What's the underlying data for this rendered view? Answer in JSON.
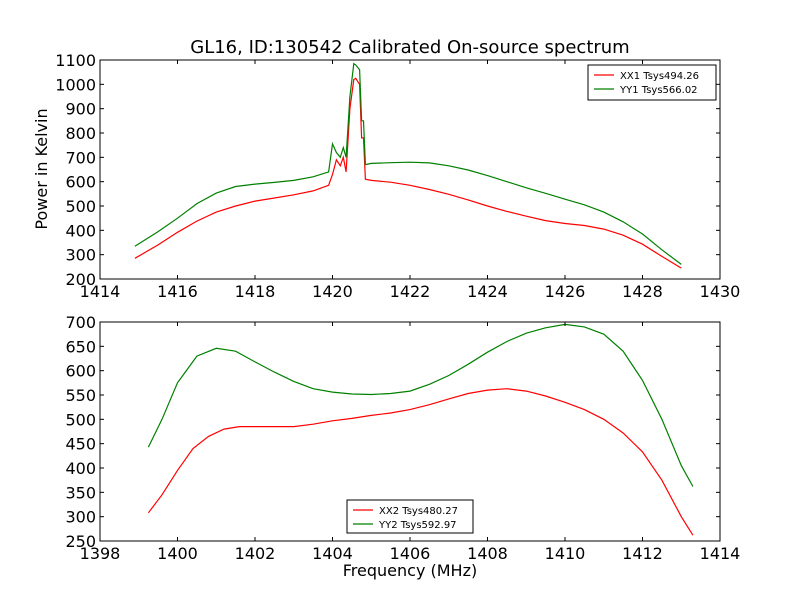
{
  "chart_data": [
    {
      "type": "line",
      "title": "GL16, ID:130542 Calibrated On-source spectrum",
      "xlabel": "",
      "ylabel": "Power in Kelvin",
      "xlim": [
        1414,
        1430
      ],
      "ylim": [
        200,
        1100
      ],
      "xticks": [
        1414,
        1416,
        1418,
        1420,
        1422,
        1424,
        1426,
        1428,
        1430
      ],
      "yticks": [
        200,
        300,
        400,
        500,
        600,
        700,
        800,
        900,
        1000,
        1100
      ],
      "legend_position": "top-right",
      "grid": false,
      "series": [
        {
          "name": "XX1 Tsys494.26",
          "color": "#ff0000",
          "points": [
            [
              1414.9,
              285
            ],
            [
              1415.5,
              340
            ],
            [
              1416.0,
              392
            ],
            [
              1416.5,
              438
            ],
            [
              1417.0,
              475
            ],
            [
              1417.5,
              500
            ],
            [
              1418.0,
              520
            ],
            [
              1418.5,
              533
            ],
            [
              1419.0,
              546
            ],
            [
              1419.5,
              562
            ],
            [
              1419.9,
              585
            ],
            [
              1420.0,
              630
            ],
            [
              1420.1,
              690
            ],
            [
              1420.2,
              665
            ],
            [
              1420.28,
              700
            ],
            [
              1420.35,
              640
            ],
            [
              1420.45,
              900
            ],
            [
              1420.55,
              1020
            ],
            [
              1420.6,
              1025
            ],
            [
              1420.7,
              1000
            ],
            [
              1420.75,
              780
            ],
            [
              1420.8,
              780
            ],
            [
              1420.85,
              610
            ],
            [
              1421.0,
              605
            ],
            [
              1421.5,
              598
            ],
            [
              1422.0,
              585
            ],
            [
              1422.5,
              568
            ],
            [
              1423.0,
              548
            ],
            [
              1423.5,
              525
            ],
            [
              1424.0,
              500
            ],
            [
              1424.5,
              478
            ],
            [
              1425.0,
              458
            ],
            [
              1425.5,
              440
            ],
            [
              1426.0,
              428
            ],
            [
              1426.5,
              420
            ],
            [
              1427.0,
              405
            ],
            [
              1427.5,
              380
            ],
            [
              1428.0,
              343
            ],
            [
              1428.5,
              293
            ],
            [
              1429.0,
              245
            ]
          ]
        },
        {
          "name": "YY1 Tsys566.02",
          "color": "#008000",
          "points": [
            [
              1414.9,
              335
            ],
            [
              1415.5,
              395
            ],
            [
              1416.0,
              450
            ],
            [
              1416.5,
              510
            ],
            [
              1417.0,
              553
            ],
            [
              1417.5,
              580
            ],
            [
              1418.0,
              590
            ],
            [
              1418.5,
              597
            ],
            [
              1419.0,
              605
            ],
            [
              1419.5,
              620
            ],
            [
              1419.9,
              640
            ],
            [
              1420.0,
              755
            ],
            [
              1420.1,
              720
            ],
            [
              1420.2,
              700
            ],
            [
              1420.28,
              740
            ],
            [
              1420.35,
              700
            ],
            [
              1420.45,
              950
            ],
            [
              1420.55,
              1085
            ],
            [
              1420.6,
              1080
            ],
            [
              1420.7,
              1060
            ],
            [
              1420.75,
              850
            ],
            [
              1420.8,
              850
            ],
            [
              1420.85,
              670
            ],
            [
              1421.0,
              675
            ],
            [
              1421.5,
              678
            ],
            [
              1422.0,
              680
            ],
            [
              1422.5,
              677
            ],
            [
              1423.0,
              665
            ],
            [
              1423.5,
              648
            ],
            [
              1424.0,
              625
            ],
            [
              1424.5,
              600
            ],
            [
              1425.0,
              575
            ],
            [
              1425.5,
              552
            ],
            [
              1426.0,
              528
            ],
            [
              1426.5,
              505
            ],
            [
              1427.0,
              475
            ],
            [
              1427.5,
              435
            ],
            [
              1428.0,
              385
            ],
            [
              1428.5,
              320
            ],
            [
              1429.0,
              260
            ]
          ]
        }
      ]
    },
    {
      "type": "line",
      "title": "",
      "xlabel": "Frequency (MHz)",
      "ylabel": "",
      "xlim": [
        1398,
        1414
      ],
      "ylim": [
        250,
        700
      ],
      "xticks": [
        1398,
        1400,
        1402,
        1404,
        1406,
        1408,
        1410,
        1412,
        1414
      ],
      "yticks": [
        250,
        300,
        350,
        400,
        450,
        500,
        550,
        600,
        650,
        700
      ],
      "legend_position": "lower-center",
      "grid": false,
      "series": [
        {
          "name": "XX2 Tsys480.27",
          "color": "#ff0000",
          "points": [
            [
              1399.25,
              308
            ],
            [
              1399.6,
              345
            ],
            [
              1400.0,
              395
            ],
            [
              1400.4,
              440
            ],
            [
              1400.8,
              465
            ],
            [
              1401.2,
              480
            ],
            [
              1401.6,
              485
            ],
            [
              1402.0,
              485
            ],
            [
              1402.5,
              485
            ],
            [
              1403.0,
              485
            ],
            [
              1403.5,
              490
            ],
            [
              1404.0,
              497
            ],
            [
              1404.5,
              502
            ],
            [
              1405.0,
              508
            ],
            [
              1405.5,
              513
            ],
            [
              1406.0,
              520
            ],
            [
              1406.5,
              530
            ],
            [
              1407.0,
              542
            ],
            [
              1407.5,
              553
            ],
            [
              1408.0,
              560
            ],
            [
              1408.5,
              563
            ],
            [
              1409.0,
              558
            ],
            [
              1409.5,
              548
            ],
            [
              1410.0,
              535
            ],
            [
              1410.5,
              520
            ],
            [
              1411.0,
              500
            ],
            [
              1411.5,
              472
            ],
            [
              1412.0,
              433
            ],
            [
              1412.5,
              375
            ],
            [
              1413.0,
              300
            ],
            [
              1413.3,
              262
            ]
          ]
        },
        {
          "name": "YY2 Tsys592.97",
          "color": "#008000",
          "points": [
            [
              1399.25,
              443
            ],
            [
              1399.6,
              500
            ],
            [
              1400.0,
              575
            ],
            [
              1400.5,
              630
            ],
            [
              1401.0,
              646
            ],
            [
              1401.5,
              640
            ],
            [
              1402.0,
              618
            ],
            [
              1402.5,
              597
            ],
            [
              1403.0,
              578
            ],
            [
              1403.5,
              563
            ],
            [
              1404.0,
              556
            ],
            [
              1404.5,
              552
            ],
            [
              1405.0,
              551
            ],
            [
              1405.5,
              553
            ],
            [
              1406.0,
              558
            ],
            [
              1406.5,
              572
            ],
            [
              1407.0,
              590
            ],
            [
              1407.5,
              613
            ],
            [
              1408.0,
              638
            ],
            [
              1408.5,
              660
            ],
            [
              1409.0,
              677
            ],
            [
              1409.5,
              688
            ],
            [
              1410.0,
              695
            ],
            [
              1410.5,
              690
            ],
            [
              1411.0,
              675
            ],
            [
              1411.5,
              640
            ],
            [
              1412.0,
              580
            ],
            [
              1412.5,
              500
            ],
            [
              1413.0,
              405
            ],
            [
              1413.3,
              362
            ]
          ]
        }
      ]
    }
  ]
}
